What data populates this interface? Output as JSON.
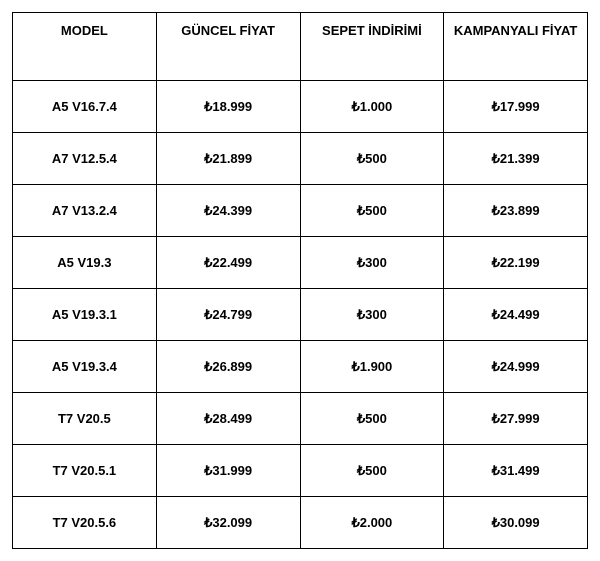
{
  "table": {
    "type": "table",
    "columns": [
      "MODEL",
      "GÜNCEL FİYAT",
      "SEPET İNDİRİMİ",
      "KAMPANYALI FİYAT"
    ],
    "rows": [
      [
        "A5 V16.7.4",
        "₺18.999",
        "₺1.000",
        "₺17.999"
      ],
      [
        "A7 V12.5.4",
        "₺21.899",
        "₺500",
        "₺21.399"
      ],
      [
        "A7 V13.2.4",
        "₺24.399",
        "₺500",
        "₺23.899"
      ],
      [
        "A5 V19.3",
        "₺22.499",
        "₺300",
        "₺22.199"
      ],
      [
        "A5 V19.3.1",
        "₺24.799",
        "₺300",
        "₺24.499"
      ],
      [
        "A5 V19.3.4",
        "₺26.899",
        "₺1.900",
        "₺24.999"
      ],
      [
        "T7 V20.5",
        "₺28.499",
        "₺500",
        "₺27.999"
      ],
      [
        "T7 V20.5.1",
        "₺31.999",
        "₺500",
        "₺31.499"
      ],
      [
        "T7 V20.5.6",
        "₺32.099",
        "₺2.000",
        "₺30.099"
      ]
    ],
    "border_color": "#000000",
    "background_color": "#ffffff",
    "text_color": "#000000",
    "header_fontsize": 13,
    "cell_fontsize": 13,
    "font_weight": "bold",
    "column_widths_pct": [
      25,
      25,
      25,
      25
    ]
  }
}
